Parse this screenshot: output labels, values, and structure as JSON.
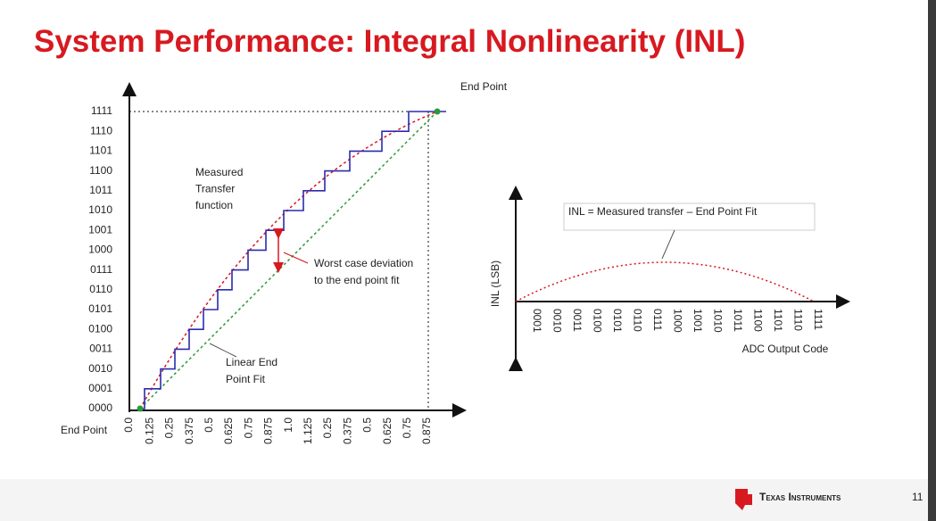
{
  "title": "System Performance: Integral Nonlinearity (INL)",
  "left_plot": {
    "y_labels": [
      "0000",
      "0001",
      "0010",
      "0011",
      "0100",
      "0101",
      "0110",
      "0111",
      "1000",
      "1001",
      "1010",
      "1011",
      "1100",
      "1101",
      "1110",
      "1111"
    ],
    "x_labels": [
      "0.0",
      "0.125",
      "0.25",
      "0.375",
      "0.5",
      "0.625",
      "0.75",
      "0.875",
      "1.0",
      "1.125",
      "0.25",
      "0.375",
      "0.5",
      "0.625",
      "0.75",
      "0.875"
    ],
    "end_point_top": "End Point",
    "end_point_bottom": "End Point",
    "measured_label": [
      "Measured",
      "Transfer",
      "function"
    ],
    "deviation_label": [
      "Worst case deviation",
      "to the end point fit"
    ],
    "fit_label": [
      "Linear End",
      "Point Fit"
    ]
  },
  "right_plot": {
    "equation": "INL = Measured transfer – End Point Fit",
    "y_label": "INL (LSB)",
    "x_labels": [
      "0001",
      "0010",
      "0011",
      "0100",
      "0101",
      "0110",
      "0111",
      "1000",
      "1001",
      "1010",
      "1011",
      "1100",
      "1101",
      "1110",
      "1111"
    ],
    "x_title": "ADC Output Code"
  },
  "footer": {
    "brand": "Texas Instruments",
    "page": "11"
  }
}
